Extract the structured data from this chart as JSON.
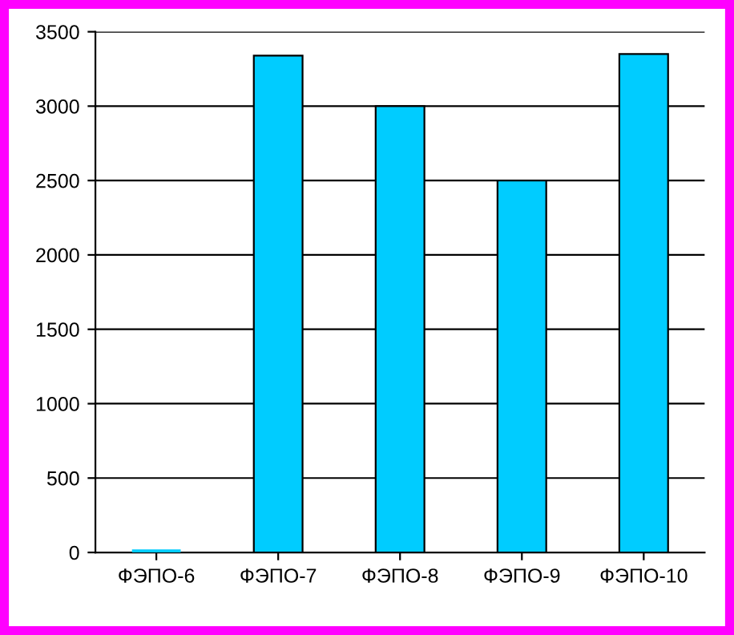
{
  "chart_data": {
    "type": "bar",
    "categories": [
      "ФЭПО-6",
      "ФЭПО-7",
      "ФЭПО-8",
      "ФЭПО-9",
      "ФЭПО-10"
    ],
    "values": [
      20,
      3340,
      3000,
      2500,
      3350
    ],
    "color": "#00ccff",
    "ylim": [
      0,
      3500
    ],
    "yticks": [
      0,
      500,
      1000,
      1500,
      2000,
      2500,
      3000,
      3500
    ],
    "grid": "y",
    "legend": false
  }
}
